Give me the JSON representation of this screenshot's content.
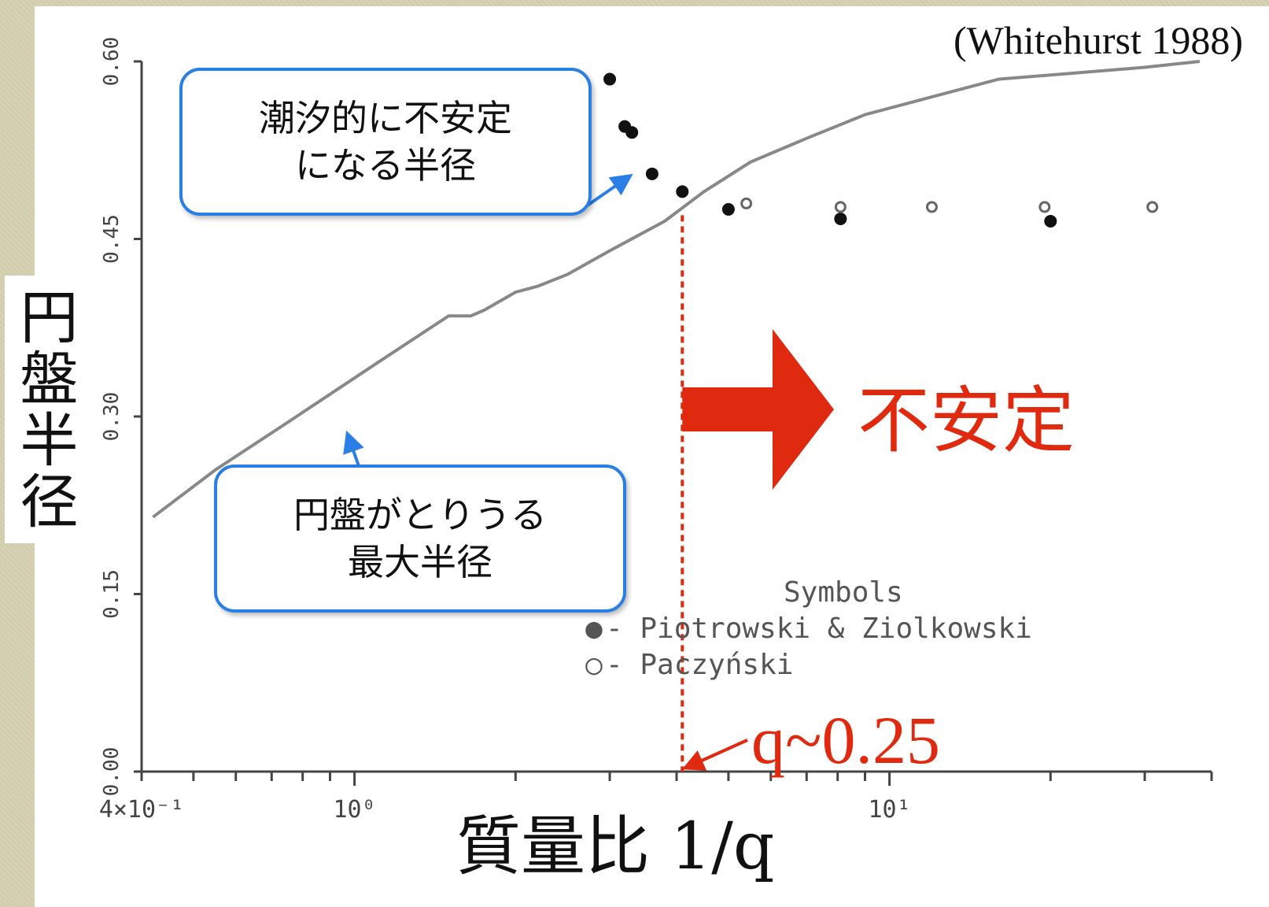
{
  "citation": "(Whitehurst 1988)",
  "axis_labels": {
    "y": "円盤半径",
    "x": "質量比  1/q"
  },
  "callouts": {
    "tidal": [
      "潮汐的に不安定",
      "になる半径"
    ],
    "max": [
      "円盤がとりうる",
      "最大半径"
    ]
  },
  "annotations": {
    "unstable": "不安定",
    "q_marker": "q~0.25"
  },
  "legend": {
    "title": "Symbols",
    "items": [
      {
        "symbol": "●",
        "label": "- Piotrowski & Ziolkowski"
      },
      {
        "symbol": "○",
        "label": "- Paczyński"
      }
    ]
  },
  "colors": {
    "callout_border": "#2a7fe6",
    "accent_red": "#e02a10",
    "curve": "#888888"
  },
  "chart_data": {
    "type": "scatter",
    "xscale": "log",
    "xlim": [
      0.4,
      40
    ],
    "ylim": [
      0.0,
      0.6
    ],
    "xtick_labels": [
      "4×10⁻¹",
      "10⁰",
      "10¹"
    ],
    "ytick_labels": [
      "0.00",
      "0.15",
      "0.30",
      "0.45",
      "0.60"
    ],
    "yticks": [
      0.0,
      0.15,
      0.3,
      0.45,
      0.6
    ],
    "curve": {
      "x": [
        0.42,
        0.55,
        0.75,
        1.1,
        1.5,
        1.65,
        1.75,
        2.0,
        2.2,
        2.5,
        3.0,
        3.8,
        4.5,
        5.5,
        7.0,
        9.0,
        12.0,
        16.0,
        22.0,
        30.0,
        38.0
      ],
      "y": [
        0.215,
        0.255,
        0.295,
        0.345,
        0.385,
        0.385,
        0.39,
        0.405,
        0.41,
        0.42,
        0.44,
        0.465,
        0.49,
        0.515,
        0.535,
        0.555,
        0.57,
        0.585,
        0.59,
        0.595,
        0.6
      ]
    },
    "series": [
      {
        "name": "Piotrowski & Ziolkowski",
        "x": [
          3.0,
          3.2,
          3.3,
          3.6,
          4.1,
          5.0,
          8.1,
          20.0
        ],
        "y": [
          0.585,
          0.545,
          0.54,
          0.505,
          0.49,
          0.475,
          0.467,
          0.465
        ]
      },
      {
        "name": "Paczyński",
        "x": [
          5.4,
          8.1,
          12.0,
          19.5,
          31.0
        ],
        "y": [
          0.48,
          0.477,
          0.477,
          0.477,
          0.477
        ]
      }
    ],
    "q_marker_x": 4.1
  }
}
